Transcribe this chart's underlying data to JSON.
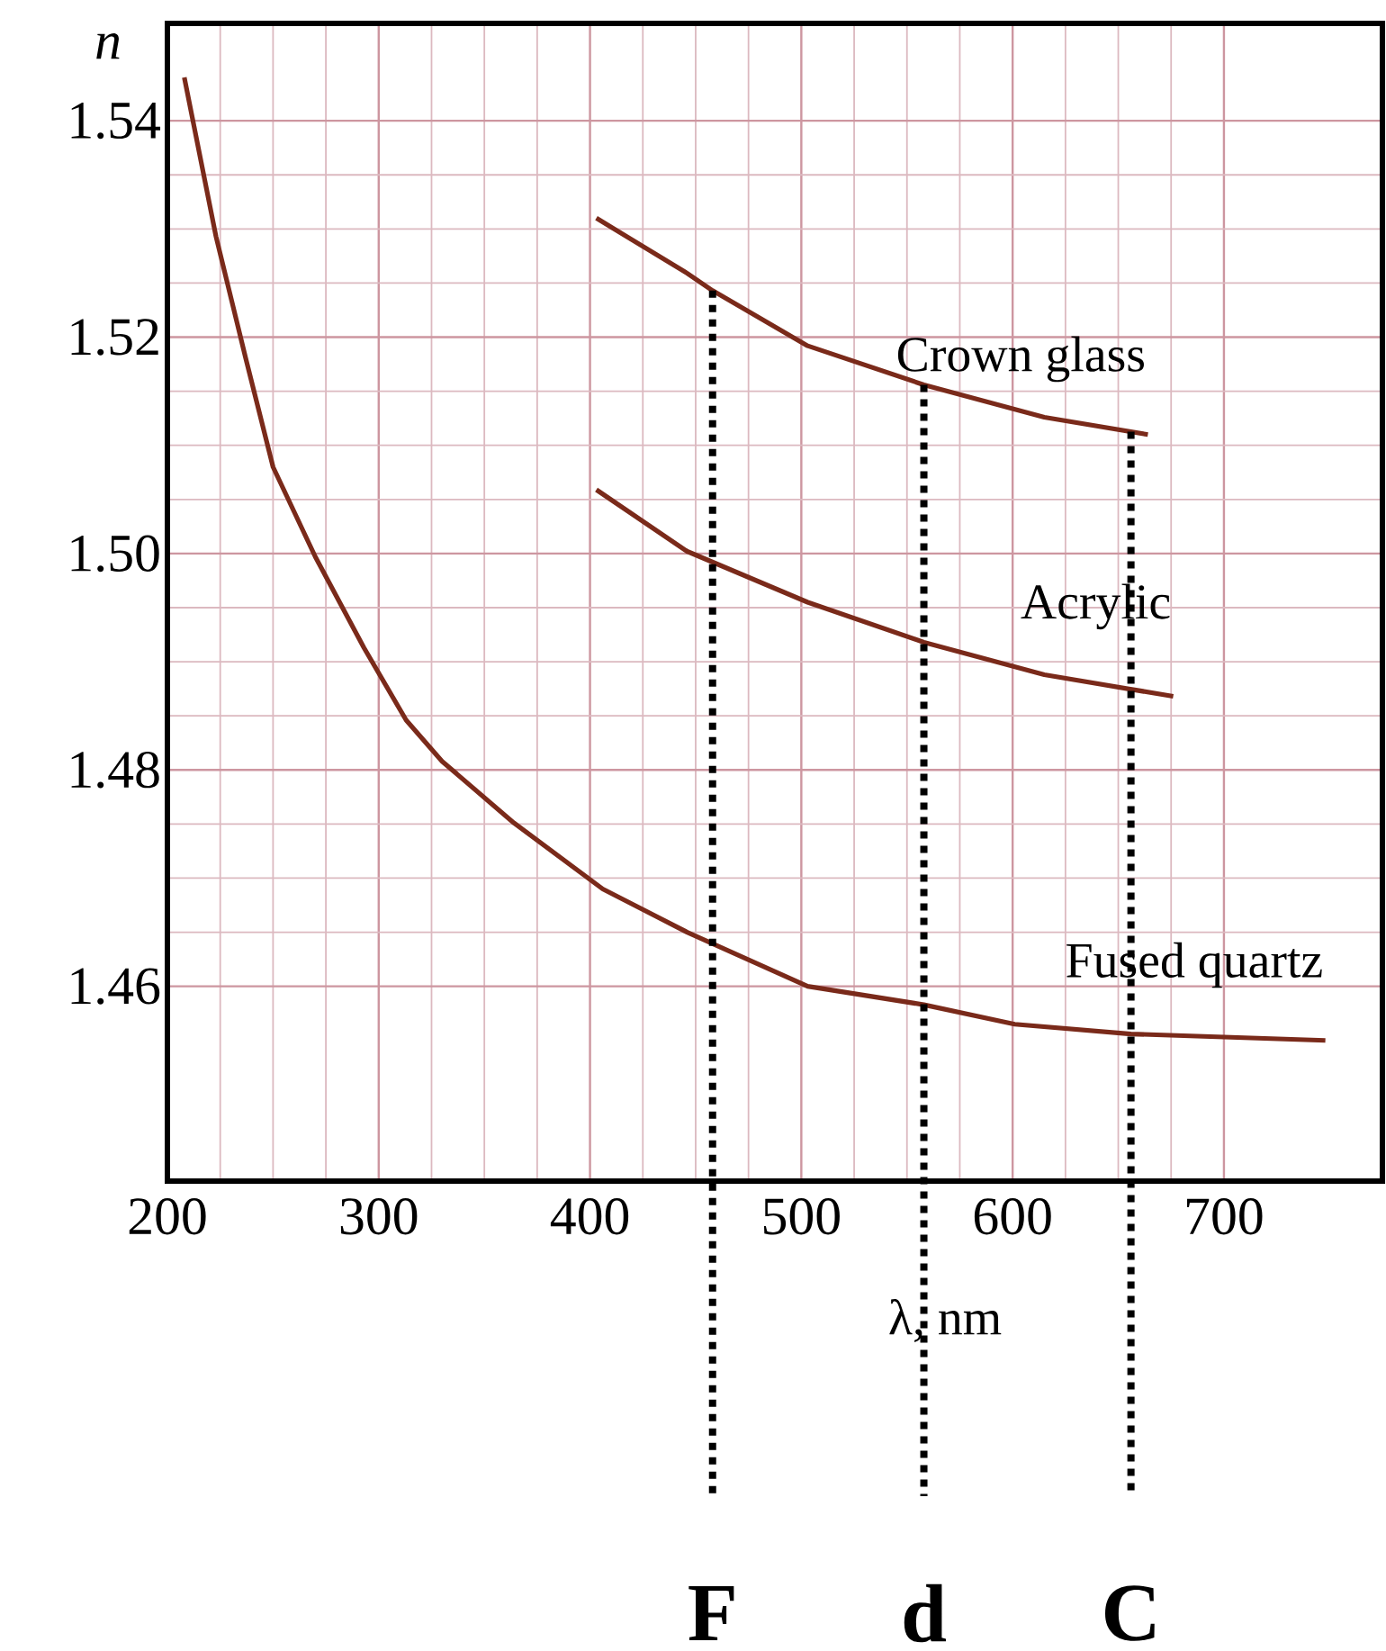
{
  "chart_data": {
    "type": "line",
    "xlabel": "λ, nm",
    "ylabel": "n",
    "xlim": [
      200,
      775
    ],
    "ylim": [
      1.442,
      1.549
    ],
    "xticks": [
      200,
      300,
      400,
      500,
      600,
      700
    ],
    "yticks": [
      {
        "value": 1.46,
        "label": "1.46"
      },
      {
        "value": 1.48,
        "label": "1.48"
      },
      {
        "value": 1.5,
        "label": "1.50"
      },
      {
        "value": 1.52,
        "label": "1.52"
      },
      {
        "value": 1.54,
        "label": "1.54"
      }
    ],
    "grid": true,
    "marker": "none",
    "line_style": "solid",
    "series": [
      {
        "name": "Crown glass",
        "color": "#7a2a1a",
        "x": [
          403,
          446,
          458,
          503,
          558,
          615,
          664
        ],
        "values": [
          1.531,
          1.5259,
          1.5243,
          1.5192,
          1.5156,
          1.5126,
          1.511
        ]
      },
      {
        "name": "Acrylic",
        "color": "#7a2a1a",
        "x": [
          403,
          446,
          503,
          558,
          615,
          676
        ],
        "values": [
          1.5059,
          1.5002,
          1.4955,
          1.4918,
          1.4888,
          1.4868
        ]
      },
      {
        "name": "Fused quartz",
        "color": "#7a2a1a",
        "x": [
          208,
          223,
          237,
          250,
          270,
          293,
          313,
          330,
          364,
          406,
          446,
          503,
          558,
          601,
          656,
          748
        ],
        "values": [
          1.544,
          1.5293,
          1.5181,
          1.508,
          1.4997,
          1.4913,
          1.4846,
          1.4808,
          1.4751,
          1.469,
          1.465,
          1.46,
          1.4583,
          1.4565,
          1.4556,
          1.455
        ]
      }
    ],
    "ref_lines": [
      {
        "axis": "x",
        "value": 458,
        "label": "F",
        "color": "#000000",
        "line_style": "dotted"
      },
      {
        "axis": "x",
        "value": 558,
        "label": "d",
        "color": "#000000",
        "line_style": "dotted"
      },
      {
        "axis": "x",
        "value": 656,
        "label": "C",
        "color": "#000000",
        "line_style": "dotted"
      }
    ]
  }
}
